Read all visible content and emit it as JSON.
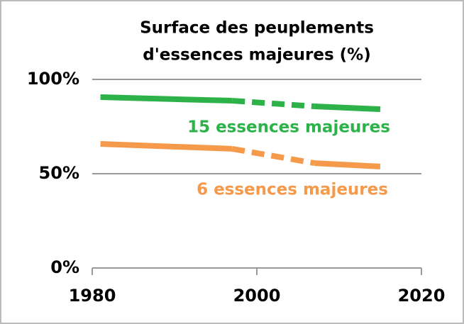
{
  "chart_data": {
    "type": "line",
    "title": [
      "Surface des peuplements",
      "d'essences majeures (%)"
    ],
    "x": [
      1981,
      1997,
      2007,
      2015
    ],
    "segment_styles": [
      "solid",
      "dashed",
      "solid"
    ],
    "series": [
      {
        "name": "15 essences majeures",
        "color": "#2db24a",
        "values": [
          90.6,
          88.7,
          85.7,
          84.2
        ]
      },
      {
        "name": "6 essences majeures",
        "color": "#f5994a",
        "values": [
          65.8,
          63.2,
          55.6,
          53.8
        ]
      }
    ],
    "xlim": [
      1980,
      2020
    ],
    "xticks": [
      1980,
      2000,
      2020
    ],
    "ylim": [
      0,
      100
    ],
    "yticks": [
      {
        "value": 0,
        "label": "0%"
      },
      {
        "value": 50,
        "label": "50%"
      },
      {
        "value": 100,
        "label": "100%"
      }
    ],
    "grid": true
  }
}
